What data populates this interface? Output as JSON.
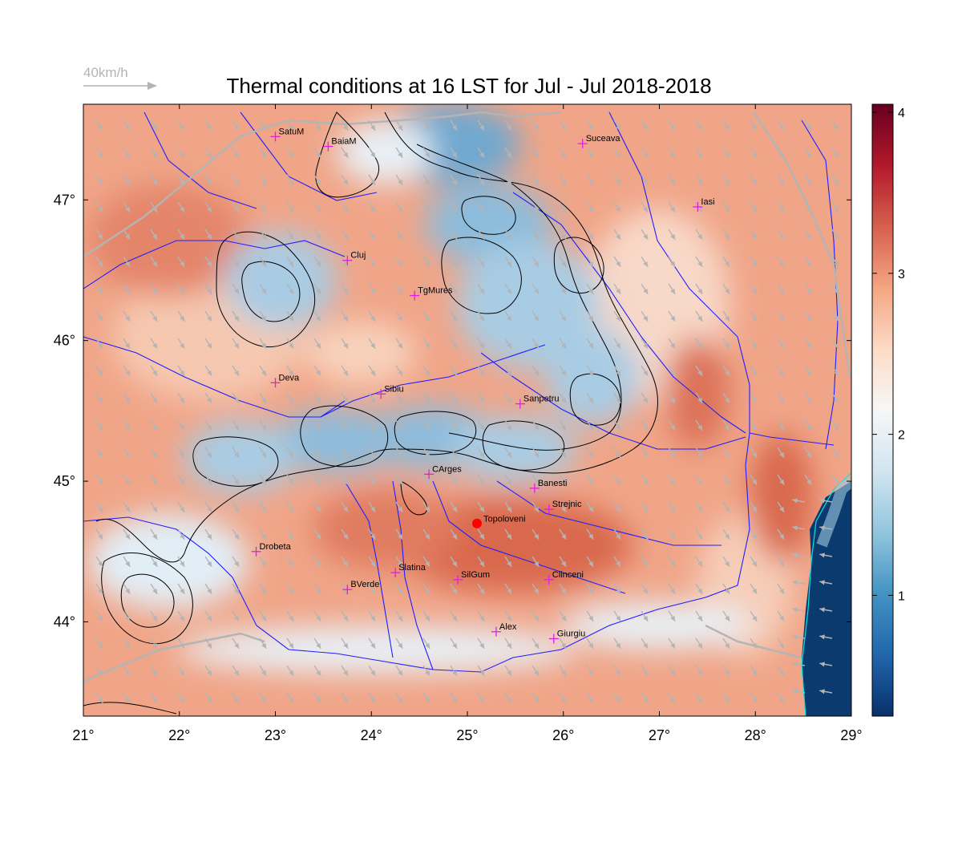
{
  "title": "Thermal conditions at 16 LST for Jul - Jul  2018-2018",
  "wind_scale_label": "40km/h",
  "x_ticks": [
    "21°",
    "22°",
    "23°",
    "24°",
    "25°",
    "26°",
    "27°",
    "28°",
    "29°"
  ],
  "y_ticks": [
    "47°",
    "46°",
    "45°",
    "44°"
  ],
  "colorbar": {
    "ticks": [
      "1",
      "2",
      "3",
      "4"
    ],
    "colors": [
      "#08306b",
      "#2166ac",
      "#4393c3",
      "#92c5de",
      "#d1e5f0",
      "#f7f7f7",
      "#fddbc7",
      "#f4a582",
      "#d6604d",
      "#b2182b",
      "#67001f"
    ]
  },
  "colors": {
    "rivers": "#1f1fff",
    "borders": "#b4b4b4",
    "city_marker": "#e020e0",
    "highlight_marker": "#ff0000",
    "contours": "#000000",
    "wind_arrows": "#b4b4b4"
  },
  "cities": [
    {
      "name": "SatuM",
      "lon": 23.0,
      "lat": 47.45
    },
    {
      "name": "BaiaM",
      "lon": 23.55,
      "lat": 47.38
    },
    {
      "name": "Suceava",
      "lon": 26.2,
      "lat": 47.4
    },
    {
      "name": "Iasi",
      "lon": 27.4,
      "lat": 46.95
    },
    {
      "name": "Cluj",
      "lon": 23.75,
      "lat": 46.57
    },
    {
      "name": "TgMures",
      "lon": 24.45,
      "lat": 46.32
    },
    {
      "name": "Deva",
      "lon": 23.0,
      "lat": 45.7
    },
    {
      "name": "Sibiu",
      "lon": 24.1,
      "lat": 45.62
    },
    {
      "name": "Sanpetru",
      "lon": 25.55,
      "lat": 45.55
    },
    {
      "name": "CArges",
      "lon": 24.6,
      "lat": 45.05
    },
    {
      "name": "Banesti",
      "lon": 25.7,
      "lat": 44.95
    },
    {
      "name": "Strejnic",
      "lon": 25.85,
      "lat": 44.8
    },
    {
      "name": "Drobeta",
      "lon": 22.8,
      "lat": 44.5
    },
    {
      "name": "Slatina",
      "lon": 24.25,
      "lat": 44.35
    },
    {
      "name": "SilGum",
      "lon": 24.9,
      "lat": 44.3
    },
    {
      "name": "Clinceni",
      "lon": 25.85,
      "lat": 44.3
    },
    {
      "name": "BVerde",
      "lon": 23.75,
      "lat": 44.23
    },
    {
      "name": "Alex",
      "lon": 25.3,
      "lat": 43.93
    },
    {
      "name": "Giurgiu",
      "lon": 25.9,
      "lat": 43.88
    }
  ],
  "highlight": {
    "name": "Topoloveni",
    "lon": 25.1,
    "lat": 44.7
  }
}
